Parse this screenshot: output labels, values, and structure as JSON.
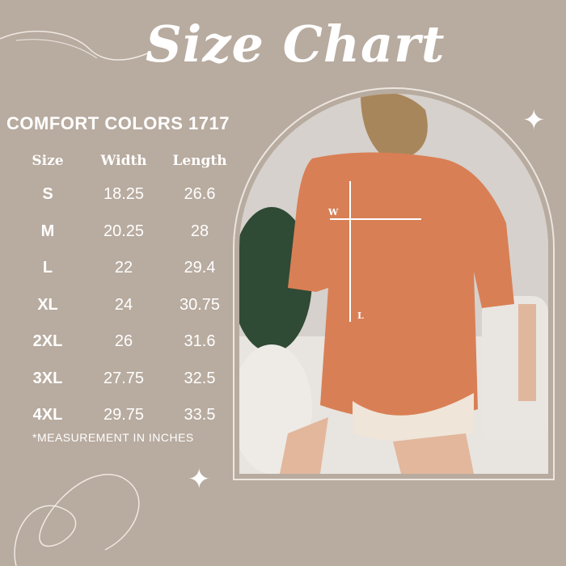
{
  "title": "Size Chart",
  "brand": "COMFORT COLORS 1717",
  "table": {
    "headers": [
      "Size",
      "Width",
      "Length"
    ],
    "rows": [
      [
        "S",
        "18.25",
        "26.6"
      ],
      [
        "M",
        "20.25",
        "28"
      ],
      [
        "L",
        "22",
        "29.4"
      ],
      [
        "XL",
        "24",
        "30.75"
      ],
      [
        "2XL",
        "26",
        "31.6"
      ],
      [
        "3XL",
        "27.75",
        "32.5"
      ],
      [
        "4XL",
        "29.75",
        "33.5"
      ]
    ]
  },
  "note": "*MEASUREMENT IN INCHES",
  "photo": {
    "width_marker": "W",
    "length_marker": "L",
    "shirt_color": "#d97f55"
  },
  "colors": {
    "background": "#b8ab9f",
    "text": "#ffffff"
  }
}
